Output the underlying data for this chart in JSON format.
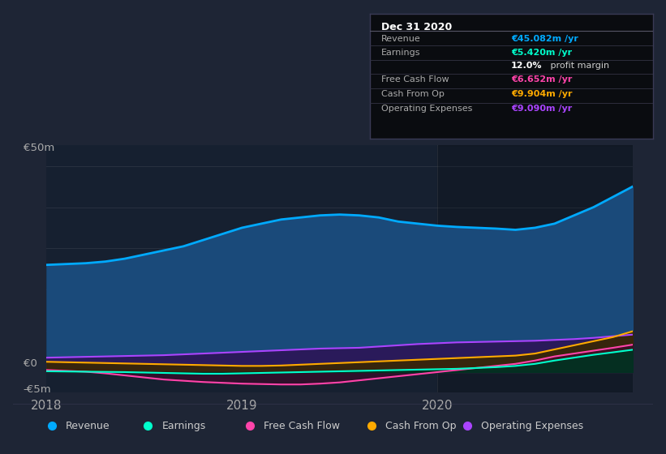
{
  "bg_color": "#1e2535",
  "plot_bg": "#162030",
  "legend_bg": "#1e2535",
  "tooltip_bg": "#0a0c10",
  "x_values": [
    0,
    0.1,
    0.2,
    0.3,
    0.4,
    0.5,
    0.6,
    0.7,
    0.8,
    0.9,
    1.0,
    1.1,
    1.2,
    1.3,
    1.4,
    1.5,
    1.6,
    1.7,
    1.8,
    1.9,
    2.0,
    2.1,
    2.2,
    2.3,
    2.4,
    2.5,
    2.6,
    2.7,
    2.8,
    2.9,
    3.0
  ],
  "series": {
    "Revenue": {
      "color": "#00aaff",
      "fill_color": "#1a4a7a",
      "fill_alpha": 1.0,
      "linewidth": 2.0,
      "values_y": [
        26,
        26.2,
        26.4,
        26.8,
        27.5,
        28.5,
        29.5,
        30.5,
        32,
        33.5,
        35,
        36,
        37,
        37.5,
        38,
        38.2,
        38,
        37.5,
        36.5,
        36,
        35.5,
        35.2,
        35.0,
        34.8,
        34.5,
        35,
        36,
        38,
        40,
        42.5,
        45
      ]
    },
    "OperatingExpenses": {
      "color": "#aa44ff",
      "fill_color": "#2a1a5a",
      "fill_alpha": 1.0,
      "linewidth": 1.5,
      "values_y": [
        3.5,
        3.6,
        3.7,
        3.8,
        3.9,
        4.0,
        4.1,
        4.3,
        4.5,
        4.7,
        4.9,
        5.1,
        5.3,
        5.5,
        5.7,
        5.8,
        5.9,
        6.2,
        6.5,
        6.8,
        7.0,
        7.2,
        7.3,
        7.4,
        7.5,
        7.6,
        7.8,
        8.0,
        8.3,
        8.7,
        9.09
      ]
    },
    "CashFromOp": {
      "color": "#ffaa00",
      "fill_color": "#3a2800",
      "fill_alpha": 0.85,
      "linewidth": 1.5,
      "values_y": [
        2.5,
        2.4,
        2.3,
        2.2,
        2.1,
        2.0,
        1.9,
        1.8,
        1.7,
        1.6,
        1.5,
        1.5,
        1.6,
        1.8,
        2.0,
        2.2,
        2.4,
        2.6,
        2.8,
        3.0,
        3.2,
        3.4,
        3.6,
        3.8,
        4.0,
        4.5,
        5.5,
        6.5,
        7.5,
        8.5,
        9.904
      ]
    },
    "FreeCashFlow": {
      "color": "#ff44aa",
      "fill_color": "#3a0a2a",
      "fill_alpha": 0.7,
      "linewidth": 1.5,
      "values_y": [
        0.5,
        0.3,
        0.1,
        -0.3,
        -0.8,
        -1.3,
        -1.8,
        -2.1,
        -2.4,
        -2.6,
        -2.8,
        -2.9,
        -3.0,
        -3.0,
        -2.8,
        -2.5,
        -2.0,
        -1.5,
        -1.0,
        -0.5,
        0.0,
        0.5,
        1.0,
        1.5,
        2.0,
        2.8,
        3.8,
        4.5,
        5.2,
        5.9,
        6.652
      ]
    },
    "Earnings": {
      "color": "#00ffcc",
      "fill_color": "#003322",
      "fill_alpha": 0.9,
      "linewidth": 1.5,
      "values_y": [
        0.2,
        0.15,
        0.1,
        0.05,
        0.0,
        -0.1,
        -0.2,
        -0.3,
        -0.4,
        -0.4,
        -0.3,
        -0.2,
        -0.1,
        0.0,
        0.1,
        0.2,
        0.3,
        0.4,
        0.5,
        0.6,
        0.7,
        0.8,
        1.0,
        1.2,
        1.5,
        2.0,
        2.8,
        3.5,
        4.2,
        4.8,
        5.42
      ]
    }
  },
  "fill_order": [
    "Revenue",
    "OperatingExpenses",
    "CashFromOp",
    "FreeCashFlow",
    "Earnings"
  ],
  "line_order": [
    "Revenue",
    "OperatingExpenses",
    "CashFromOp",
    "FreeCashFlow",
    "Earnings"
  ],
  "xlim": [
    0,
    3.0
  ],
  "ylim": [
    -5,
    55
  ],
  "xtick_positions": [
    0,
    1,
    2
  ],
  "xtick_labels": [
    "2018",
    "2019",
    "2020"
  ],
  "ylabel_50m": "€50m",
  "ylabel_0": "€0",
  "ylabel_neg5m": "-€5m",
  "grid_y_values": [
    0,
    10,
    20,
    30,
    40,
    50
  ],
  "grid_color": "#ffffff",
  "grid_alpha": 0.08,
  "vline_x": 2.0,
  "vline_color": "#ffffff",
  "vline_alpha": 0.12,
  "legend_items": [
    {
      "label": "Revenue",
      "color": "#00aaff"
    },
    {
      "label": "Earnings",
      "color": "#00ffcc"
    },
    {
      "label": "Free Cash Flow",
      "color": "#ff44aa"
    },
    {
      "label": "Cash From Op",
      "color": "#ffaa00"
    },
    {
      "label": "Operating Expenses",
      "color": "#aa44ff"
    }
  ],
  "tooltip": {
    "date": "Dec 31 2020",
    "separator_color": "#555566",
    "row_sep_color": "#333344",
    "rows": [
      {
        "label": "Revenue",
        "value": "€45.082m /yr",
        "value_color": "#00aaff",
        "label_color": "#aaaaaa"
      },
      {
        "label": "Earnings",
        "value": "€5.420m /yr",
        "value_color": "#00ffcc",
        "label_color": "#aaaaaa"
      },
      {
        "label": "",
        "value": "12.0%",
        "value_color": "#ffffff",
        "label_color": "#ffffff",
        "suffix": " profit margin"
      },
      {
        "label": "Free Cash Flow",
        "value": "€6.652m /yr",
        "value_color": "#ff44aa",
        "label_color": "#aaaaaa"
      },
      {
        "label": "Cash From Op",
        "value": "€9.904m /yr",
        "value_color": "#ffaa00",
        "label_color": "#aaaaaa"
      },
      {
        "label": "Operating Expenses",
        "value": "€9.090m /yr",
        "value_color": "#aa44ff",
        "label_color": "#aaaaaa"
      }
    ]
  }
}
